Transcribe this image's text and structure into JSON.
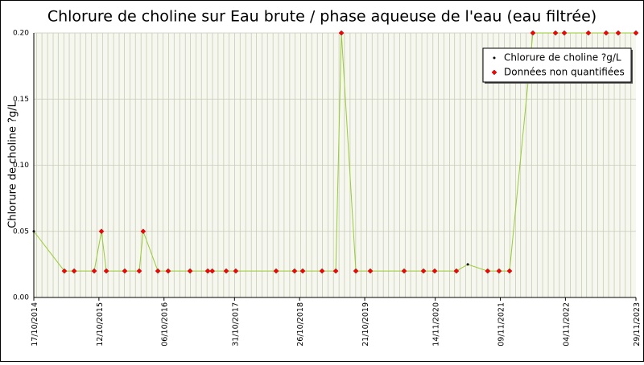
{
  "chart_data": {
    "type": "line",
    "title": "Chlorure de choline sur Eau brute / phase aqueuse de l'eau (eau filtrée)",
    "y_label": "Chlorure de choline ?g/L",
    "x": [
      "17/10/2014",
      "04/04/2015",
      "28/05/2015",
      "16/09/2015",
      "26/10/2015",
      "22/11/2015",
      "03/03/2016",
      "22/05/2016",
      "13/06/2016",
      "02/09/2016",
      "29/10/2016",
      "27/02/2017",
      "05/06/2017",
      "30/06/2017",
      "15/09/2017",
      "07/11/2017",
      "18/06/2018",
      "28/09/2018",
      "12/11/2018",
      "27/02/2019",
      "14/05/2019",
      "14/06/2019",
      "02/09/2019",
      "21/11/2019",
      "26/05/2020",
      "10/09/2020",
      "11/11/2020",
      "11/03/2021",
      "13/05/2021",
      "31/08/2021",
      "02/11/2021",
      "30/12/2021",
      "08/05/2022",
      "10/09/2022",
      "29/10/2022",
      "11/03/2023",
      "17/06/2023",
      "23/08/2023",
      "29/11/2023"
    ],
    "series": [
      {
        "name": "Chlorure de choline ?g/L",
        "color": "#99cc33",
        "marker_color": "#000000",
        "values": [
          0.05,
          0.02,
          0.02,
          0.02,
          0.05,
          0.02,
          0.02,
          0.02,
          0.05,
          0.02,
          0.02,
          0.02,
          0.02,
          0.02,
          0.02,
          0.02,
          0.02,
          0.02,
          0.02,
          0.02,
          0.02,
          0.2,
          0.02,
          0.02,
          0.02,
          0.02,
          0.02,
          0.02,
          0.025,
          0.02,
          0.02,
          0.02,
          0.2,
          0.2,
          0.2,
          0.2,
          0.2,
          0.2,
          0.2
        ]
      },
      {
        "name": "Données non quantifiées",
        "color": "#ff0000",
        "values": [
          null,
          0.02,
          0.02,
          0.02,
          0.05,
          0.02,
          0.02,
          0.02,
          0.05,
          0.02,
          0.02,
          0.02,
          0.02,
          0.02,
          0.02,
          0.02,
          0.02,
          0.02,
          0.02,
          0.02,
          0.02,
          0.2,
          0.02,
          0.02,
          0.02,
          0.02,
          0.02,
          0.02,
          null,
          0.02,
          0.02,
          0.02,
          0.2,
          0.2,
          0.2,
          0.2,
          0.2,
          0.2,
          0.2
        ]
      }
    ],
    "xlim": [
      "17/10/2014",
      "29/11/2023"
    ],
    "xticks": [
      "17/10/2014",
      "12/10/2015",
      "06/10/2016",
      "31/10/2017",
      "26/10/2018",
      "21/10/2019",
      "14/11/2020",
      "09/11/2021",
      "04/11/2022",
      "29/11/2023"
    ],
    "ylim": [
      0,
      0.2
    ],
    "yticks": [
      {
        "value": 0,
        "label": "0.00"
      },
      {
        "value": 0.05,
        "label": "0.05"
      },
      {
        "value": 0.1,
        "label": "0.10"
      },
      {
        "value": 0.15,
        "label": "0.15"
      },
      {
        "value": 0.2,
        "label": "0.20"
      }
    ],
    "grid": true,
    "x_minor_grid": "month",
    "legend": "top-right"
  }
}
